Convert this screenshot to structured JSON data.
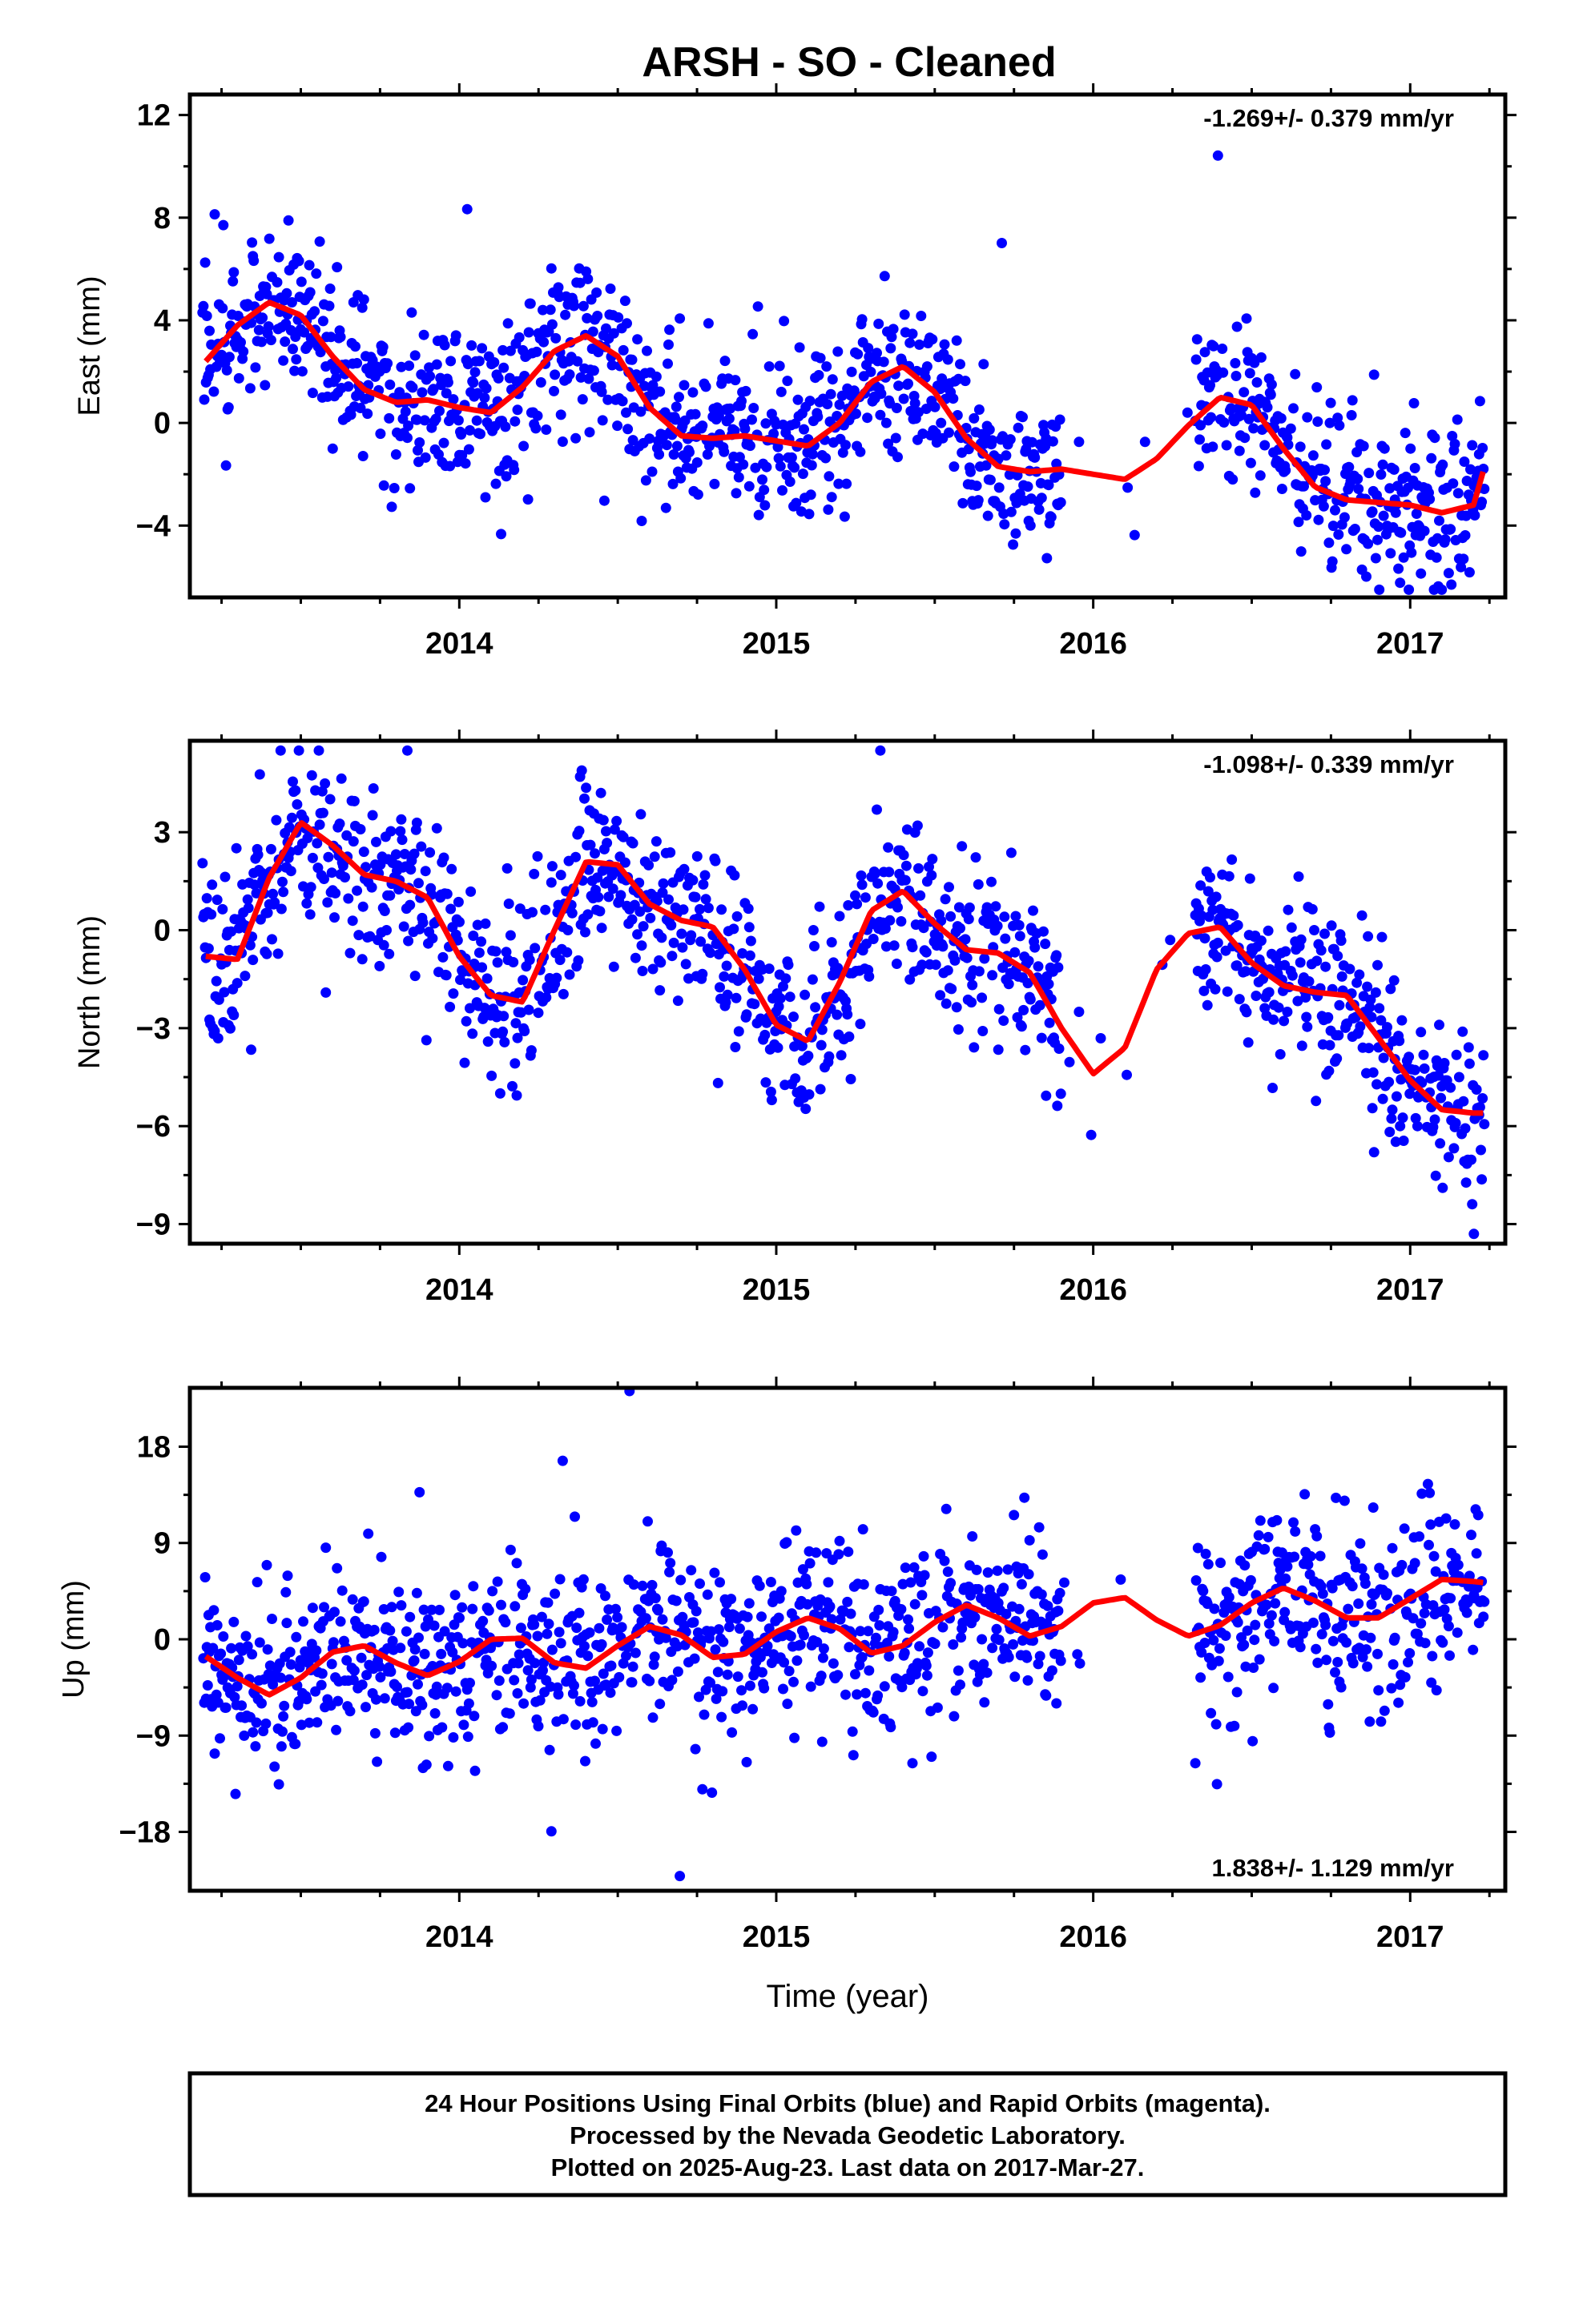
{
  "title": "ARSH  - SO - Cleaned",
  "footer": {
    "lines": [
      "24 Hour Positions Using Final Orbits (blue) and Rapid Orbits (magenta).",
      "Processed by the Nevada Geodetic Laboratory.",
      "Plotted on 2025-Aug-23. Last data on 2017-Mar-27."
    ]
  },
  "colors": {
    "points": "#0000ff",
    "fit": "#ff0000",
    "frame": "#000000",
    "background": "#ffffff"
  },
  "chart_data": [
    {
      "type": "scatter",
      "name": "east",
      "ylabel": "East (mm)",
      "xlabel": "",
      "rate": "-1.269+/- 0.379 mm/yr",
      "xlim": [
        2013.15,
        2017.3
      ],
      "ylim": [
        -6.8,
        12.8
      ],
      "yticks": [
        12,
        8,
        4,
        0,
        -4
      ],
      "xticks": [
        2014,
        2015,
        2016,
        2017
      ],
      "xtick_labels": [
        "2014",
        "2015",
        "2016",
        "2017"
      ],
      "fit": {
        "x": [
          2013.2,
          2013.3,
          2013.4,
          2013.5,
          2013.6,
          2013.7,
          2013.8,
          2013.9,
          2014.0,
          2014.1,
          2014.2,
          2014.3,
          2014.4,
          2014.5,
          2014.6,
          2014.7,
          2014.8,
          2014.9,
          2015.0,
          2015.1,
          2015.2,
          2015.3,
          2015.4,
          2015.5,
          2015.6,
          2015.7,
          2015.8,
          2015.9,
          2016.0,
          2016.1,
          2016.2,
          2016.3,
          2016.4,
          2016.5,
          2016.6,
          2016.7,
          2016.8,
          2016.9,
          2017.0,
          2017.1,
          2017.2,
          2017.23
        ],
        "y": [
          2.4,
          3.8,
          4.7,
          4.2,
          2.6,
          1.3,
          0.8,
          0.9,
          0.6,
          0.4,
          1.4,
          2.8,
          3.4,
          2.6,
          0.6,
          -0.5,
          -0.6,
          -0.5,
          -0.7,
          -0.9,
          0.0,
          1.6,
          2.2,
          1.2,
          -0.6,
          -1.7,
          -1.9,
          -1.8,
          -2.0,
          -2.2,
          -1.4,
          -0.1,
          1.0,
          0.7,
          -1.0,
          -2.5,
          -3.0,
          -3.1,
          -3.2,
          -3.5,
          -3.2,
          -1.9
        ]
      },
      "points": {
        "x": [],
        "y": []
      }
    },
    {
      "type": "scatter",
      "name": "north",
      "ylabel": "North (mm)",
      "xlabel": "",
      "rate": "-1.098+/- 0.339 mm/yr",
      "xlim": [
        2013.15,
        2017.3
      ],
      "ylim": [
        -9.6,
        5.8
      ],
      "yticks": [
        3,
        0,
        -3,
        -6,
        -9
      ],
      "xticks": [
        2014,
        2015,
        2016,
        2017
      ],
      "xtick_labels": [
        "2014",
        "2015",
        "2016",
        "2017"
      ],
      "fit": {
        "x": [
          2013.2,
          2013.3,
          2013.4,
          2013.5,
          2013.6,
          2013.7,
          2013.8,
          2013.9,
          2014.0,
          2014.1,
          2014.2,
          2014.3,
          2014.4,
          2014.5,
          2014.6,
          2014.7,
          2014.8,
          2014.9,
          2015.0,
          2015.1,
          2015.2,
          2015.3,
          2015.4,
          2015.5,
          2015.6,
          2015.7,
          2015.8,
          2015.9,
          2016.0,
          2016.1,
          2016.2,
          2016.3,
          2016.4,
          2016.5,
          2016.6,
          2016.7,
          2016.8,
          2016.9,
          2017.0,
          2017.1,
          2017.2,
          2017.23
        ],
        "y": [
          -0.8,
          -0.9,
          1.6,
          3.3,
          2.6,
          1.7,
          1.5,
          1.0,
          -0.8,
          -2.0,
          -2.2,
          0.0,
          2.1,
          2.0,
          0.8,
          0.3,
          0.1,
          -1.2,
          -2.9,
          -3.4,
          -1.6,
          0.6,
          1.2,
          0.2,
          -0.6,
          -0.7,
          -1.3,
          -3.0,
          -4.4,
          -3.6,
          -1.2,
          -0.1,
          0.1,
          -1.0,
          -1.7,
          -1.9,
          -2.0,
          -3.3,
          -4.6,
          -5.5,
          -5.6,
          -5.6
        ]
      },
      "points": {
        "x": [],
        "y": []
      }
    },
    {
      "type": "scatter",
      "name": "up",
      "ylabel": "Up (mm)",
      "xlabel": "Time (year)",
      "rate": "1.838+/- 1.129 mm/yr",
      "xlim": [
        2013.15,
        2017.3
      ],
      "ylim": [
        -23.5,
        23.5
      ],
      "yticks": [
        18,
        9,
        0,
        -9,
        -18
      ],
      "xticks": [
        2014,
        2015,
        2016,
        2017
      ],
      "xtick_labels": [
        "2014",
        "2015",
        "2016",
        "2017"
      ],
      "fit": {
        "x": [
          2013.2,
          2013.3,
          2013.4,
          2013.5,
          2013.6,
          2013.7,
          2013.8,
          2013.9,
          2014.0,
          2014.1,
          2014.2,
          2014.3,
          2014.4,
          2014.5,
          2014.6,
          2014.7,
          2014.8,
          2014.9,
          2015.0,
          2015.1,
          2015.2,
          2015.3,
          2015.4,
          2015.5,
          2015.6,
          2015.7,
          2015.8,
          2015.9,
          2016.0,
          2016.1,
          2016.2,
          2016.3,
          2016.4,
          2016.5,
          2016.6,
          2016.7,
          2016.8,
          2016.9,
          2017.0,
          2017.1,
          2017.2,
          2017.23
        ],
        "y": [
          -1.6,
          -3.6,
          -5.2,
          -3.6,
          -1.2,
          -0.6,
          -2.2,
          -3.4,
          -2.1,
          0.0,
          0.1,
          -2.2,
          -2.7,
          -0.6,
          1.2,
          0.4,
          -1.7,
          -1.4,
          0.7,
          2.0,
          1.0,
          -1.3,
          -0.6,
          1.6,
          3.2,
          2.0,
          0.3,
          1.2,
          3.4,
          3.9,
          1.8,
          0.3,
          1.3,
          3.4,
          4.8,
          3.6,
          2.0,
          2.0,
          3.8,
          5.6,
          5.4,
          5.3
        ]
      },
      "points": {
        "x": [],
        "y": []
      }
    }
  ]
}
